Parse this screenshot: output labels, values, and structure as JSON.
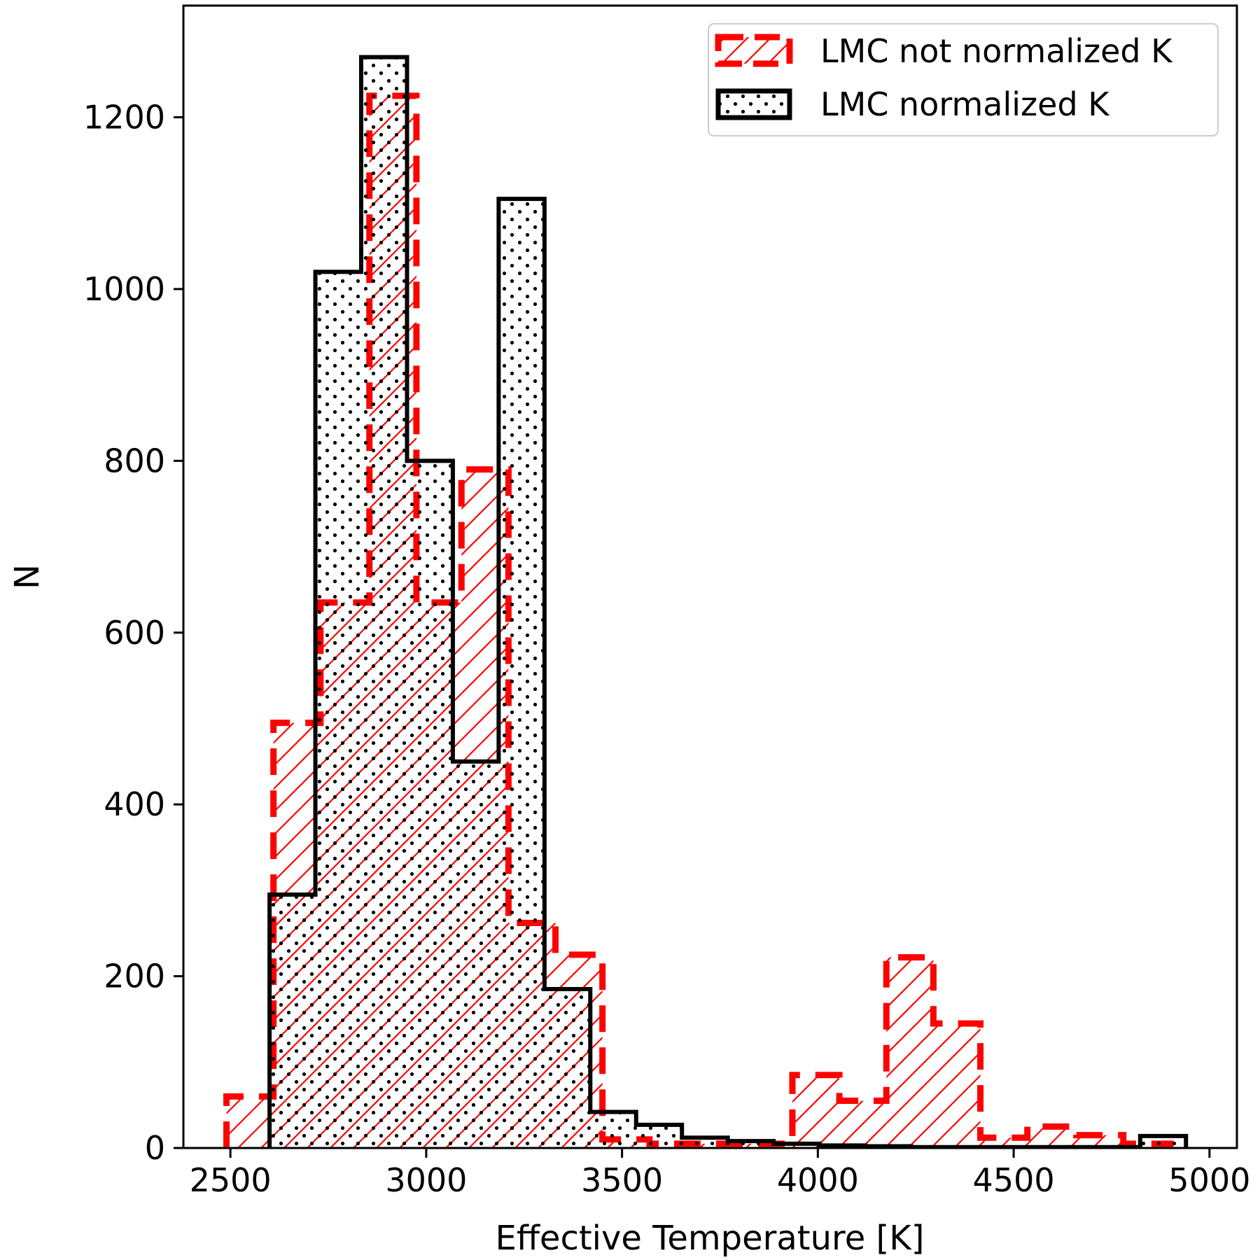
{
  "chart_data": {
    "type": "bar",
    "subtype": "step-histogram",
    "xlabel": "Effective Temperature [K]",
    "ylabel": "N",
    "xlim": [
      2380,
      5070
    ],
    "ylim": [
      0,
      1330
    ],
    "xticks": [
      2500,
      3000,
      3500,
      4000,
      4500,
      5000
    ],
    "yticks": [
      0,
      200,
      400,
      600,
      800,
      1000,
      1200
    ],
    "grid": false,
    "legend_position": "top-right",
    "series": [
      {
        "name": "LMC not normalized K",
        "color": "#ff0000",
        "line_style": "dashed",
        "hatch": "diagonal",
        "bin_edges": [
          2490,
          2610,
          2730,
          2855,
          2975,
          3090,
          3210,
          3330,
          3450,
          3570,
          3690,
          3810,
          3935,
          4055,
          4175,
          4295,
          4415,
          4535,
          4660,
          4780,
          4900
        ],
        "counts": [
          60,
          495,
          635,
          1225,
          635,
          790,
          262,
          225,
          10,
          5,
          5,
          5,
          85,
          55,
          222,
          145,
          12,
          25,
          15,
          5
        ]
      },
      {
        "name": "LMC normalized K",
        "color": "#000000",
        "line_style": "solid",
        "hatch": "dots",
        "bin_edges": [
          2600,
          2717,
          2834,
          2951,
          3068,
          3185,
          3302,
          3419,
          3536,
          3653,
          3770,
          3887,
          4004,
          4121,
          4238,
          4355,
          4472,
          4589,
          4706,
          4823,
          4940
        ],
        "counts": [
          295,
          1020,
          1270,
          800,
          450,
          1105,
          185,
          42,
          27,
          12,
          8,
          5,
          3,
          2,
          1,
          1,
          1,
          1,
          1,
          14
        ]
      }
    ]
  }
}
